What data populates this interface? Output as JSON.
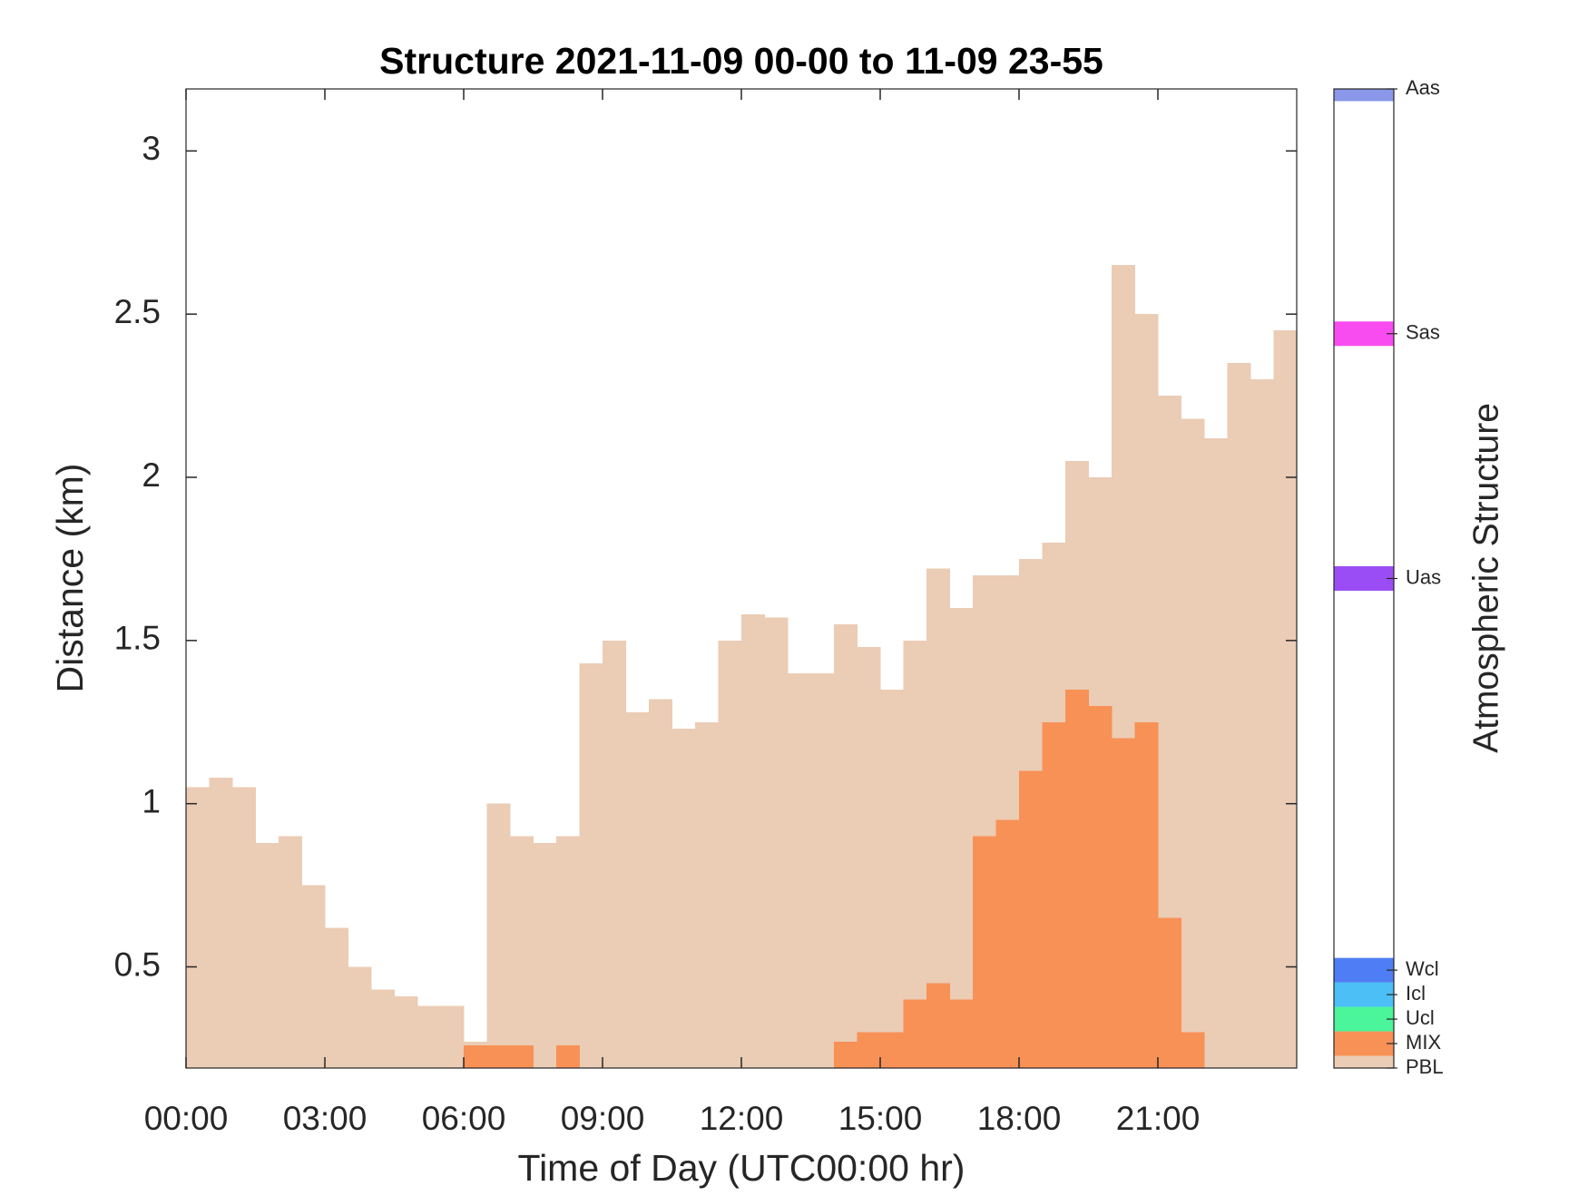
{
  "chart_data": {
    "type": "bar",
    "title": "Structure 2021-11-09 00-00 to 11-09 23-55",
    "x_label": "Time of Day (UTC00:00 hr)",
    "y_label": "Distance (km)",
    "x": [
      0,
      0.5,
      1,
      1.5,
      2,
      2.5,
      3,
      3.5,
      4,
      4.5,
      5,
      5.5,
      6,
      6.5,
      7,
      7.5,
      8,
      8.5,
      9,
      9.5,
      10,
      10.5,
      11,
      11.5,
      12,
      12.5,
      13,
      13.5,
      14,
      14.5,
      15,
      15.5,
      16,
      16.5,
      17,
      17.5,
      18,
      18.5,
      19,
      19.5,
      20,
      20.5,
      21,
      21.5,
      22,
      22.5,
      23,
      23.5
    ],
    "xlim": [
      0,
      24
    ],
    "xticks": [
      {
        "value": 0,
        "label": "00:00"
      },
      {
        "value": 3,
        "label": "03:00"
      },
      {
        "value": 6,
        "label": "06:00"
      },
      {
        "value": 9,
        "label": "09:00"
      },
      {
        "value": 12,
        "label": "12:00"
      },
      {
        "value": 15,
        "label": "15:00"
      },
      {
        "value": 18,
        "label": "18:00"
      },
      {
        "value": 21,
        "label": "21:00"
      }
    ],
    "ylim": [
      0.19,
      3.19
    ],
    "yticks": [
      0.5,
      1,
      1.5,
      2,
      2.5,
      3
    ],
    "series": [
      {
        "name": "PBL",
        "color": "#ebccb5",
        "level": 0,
        "values": [
          1.05,
          1.08,
          1.05,
          0.88,
          0.9,
          0.75,
          0.62,
          0.5,
          0.43,
          0.41,
          0.38,
          0.38,
          0.27,
          1.0,
          0.9,
          0.88,
          0.9,
          1.43,
          1.5,
          1.28,
          1.32,
          1.23,
          1.25,
          1.5,
          1.58,
          1.57,
          1.4,
          1.4,
          1.55,
          1.48,
          1.35,
          1.5,
          1.72,
          1.6,
          1.7,
          1.7,
          1.75,
          1.8,
          2.05,
          2.0,
          2.65,
          2.5,
          2.25,
          2.18,
          2.12,
          2.35,
          2.3,
          2.45
        ]
      },
      {
        "name": "MIX",
        "color": "#f89156",
        "level": 1,
        "values": [
          null,
          null,
          null,
          null,
          null,
          null,
          null,
          null,
          null,
          null,
          null,
          null,
          0.26,
          0.26,
          0.26,
          null,
          0.26,
          null,
          null,
          null,
          null,
          null,
          null,
          null,
          null,
          null,
          null,
          null,
          0.27,
          0.3,
          0.3,
          0.4,
          0.45,
          0.4,
          0.9,
          0.95,
          1.1,
          1.25,
          1.35,
          1.3,
          1.2,
          1.25,
          0.65,
          0.3,
          null,
          null,
          null,
          null
        ]
      }
    ],
    "colorbar": {
      "label": "Atmospheric Structure",
      "lim": [
        0,
        40
      ],
      "classes": [
        {
          "name": "Ucl",
          "color": "#4bf59b",
          "level": 2
        },
        {
          "name": "Icl",
          "color": "#4cbff6",
          "level": 3
        },
        {
          "name": "Wcl",
          "color": "#4f7df5",
          "level": 4
        },
        {
          "name": "Uas",
          "color": "#9b4df5",
          "level": 20
        },
        {
          "name": "Sas",
          "color": "#f84cf0",
          "level": 30
        },
        {
          "name": "Aas",
          "color": "#8b97e8",
          "level": 40
        }
      ]
    }
  }
}
